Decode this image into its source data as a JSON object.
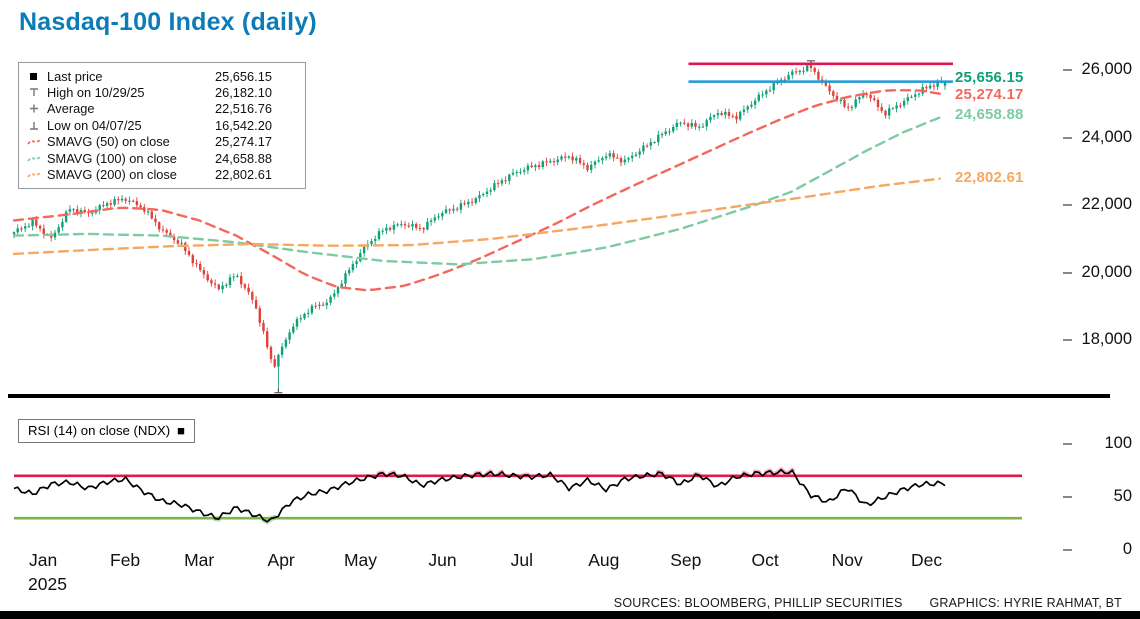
{
  "title": "Nasdaq-100 Index (daily)",
  "colors": {
    "title": "#0b7cb8",
    "up": "#0ea077",
    "down": "#e2403a",
    "sma50": "#f2685f",
    "sma100": "#7ecba2",
    "sma200": "#f7a75f",
    "high_line": "#e1184e",
    "last_line": "#1b9bd7",
    "rsi_line": "#000000",
    "rsi_over": "#e1184e",
    "rsi_under": "#7cb54b",
    "rsi_over_excess": "#f4a7bc",
    "rsi_under_excess": "#a9d49e",
    "axis_text": "#111111"
  },
  "legend": {
    "rows": [
      {
        "marker": "square",
        "label": "Last price",
        "value": "25,656.15"
      },
      {
        "marker": "high-tick",
        "label": "High on 10/29/25",
        "value": "26,182.10"
      },
      {
        "marker": "cross",
        "label": "Average",
        "value": "22,516.76"
      },
      {
        "marker": "low-tick",
        "label": "Low on 04/07/25",
        "value": "16,542.20"
      },
      {
        "marker": "dash-sma50",
        "label": "SMAVG (50) on close",
        "value": "25,274.17"
      },
      {
        "marker": "dash-sma100",
        "label": "SMAVG (100) on close",
        "value": "24,658.88"
      },
      {
        "marker": "dash-sma200",
        "label": "SMAVG (200) on close",
        "value": "22,802.61"
      }
    ]
  },
  "price_axis": [
    {
      "text": "26,000",
      "value": 26000
    },
    {
      "text": "24,000",
      "value": 24000
    },
    {
      "text": "22,000",
      "value": 22000
    },
    {
      "text": "20,000",
      "value": 20000
    },
    {
      "text": "18,000",
      "value": 18000
    }
  ],
  "rsi_axis": [
    {
      "text": "100",
      "value": 100
    },
    {
      "text": "50",
      "value": 50
    },
    {
      "text": "0",
      "value": 0
    }
  ],
  "price_callouts": [
    {
      "text": "25,656.15",
      "value": 25656.15,
      "color_key": "up"
    },
    {
      "text": "25,274.17",
      "value": 25274.17,
      "color_key": "sma50"
    },
    {
      "text": "24,658.88",
      "value": 24658.88,
      "color_key": "sma100"
    },
    {
      "text": "22,802.61",
      "value": 22802.61,
      "color_key": "sma200"
    }
  ],
  "rsi": {
    "label": "RSI (14) on close (NDX)",
    "marker": "■"
  },
  "footer": {
    "sources": "SOURCES: BLOOMBERG, PHILLIP SECURITIES",
    "graphics": "GRAPHICS: HYRIE RAHMAT, BT"
  },
  "chart_data": {
    "type": "candlestick",
    "title": "Nasdaq-100 Index (daily)",
    "year": "2025",
    "months": [
      "Jan",
      "Feb",
      "Mar",
      "Apr",
      "May",
      "Jun",
      "Jul",
      "Aug",
      "Sep",
      "Oct",
      "Nov",
      "Dec"
    ],
    "x_unit": "day_of_year_2025",
    "x_range": [
      0,
      352
    ],
    "ylim_price": [
      16300,
      26800
    ],
    "ylim_rsi": [
      0,
      100
    ],
    "last_price": 25656.15,
    "high": {
      "date": "10/29/25",
      "value": 26182.1
    },
    "low": {
      "date": "04/07/25",
      "value": 16542.2
    },
    "average": 22516.76,
    "weekly_close": [
      21200,
      21500,
      21000,
      21900,
      21750,
      22050,
      22200,
      21900,
      21250,
      20850,
      20100,
      19500,
      19950,
      19100,
      17200,
      18400,
      18950,
      19150,
      20000,
      20800,
      21300,
      21450,
      21300,
      21750,
      21950,
      22200,
      22600,
      22950,
      23150,
      23300,
      23450,
      23100,
      23500,
      23300,
      23700,
      24100,
      24450,
      24300,
      24750,
      24600,
      25100,
      25550,
      25900,
      26100,
      25400,
      24850,
      25350,
      24700,
      25050,
      25400,
      25656.15
    ],
    "sma50": [
      [
        0,
        21550
      ],
      [
        20,
        21720
      ],
      [
        40,
        21930
      ],
      [
        55,
        21870
      ],
      [
        70,
        21550
      ],
      [
        84,
        21100
      ],
      [
        98,
        20500
      ],
      [
        110,
        19950
      ],
      [
        122,
        19580
      ],
      [
        134,
        19480
      ],
      [
        148,
        19620
      ],
      [
        162,
        19980
      ],
      [
        176,
        20420
      ],
      [
        190,
        20920
      ],
      [
        204,
        21420
      ],
      [
        218,
        21980
      ],
      [
        232,
        22500
      ],
      [
        246,
        23000
      ],
      [
        260,
        23500
      ],
      [
        274,
        24000
      ],
      [
        288,
        24480
      ],
      [
        302,
        24920
      ],
      [
        316,
        25220
      ],
      [
        330,
        25400
      ],
      [
        342,
        25400
      ],
      [
        352,
        25274.17
      ]
    ],
    "sma100": [
      [
        0,
        21100
      ],
      [
        28,
        21150
      ],
      [
        56,
        21100
      ],
      [
        84,
        20900
      ],
      [
        112,
        20600
      ],
      [
        140,
        20350
      ],
      [
        168,
        20250
      ],
      [
        196,
        20400
      ],
      [
        224,
        20750
      ],
      [
        252,
        21300
      ],
      [
        280,
        22000
      ],
      [
        294,
        22400
      ],
      [
        308,
        23000
      ],
      [
        322,
        23600
      ],
      [
        336,
        24150
      ],
      [
        352,
        24658.88
      ]
    ],
    "sma200": [
      [
        0,
        20560
      ],
      [
        30,
        20680
      ],
      [
        60,
        20790
      ],
      [
        90,
        20850
      ],
      [
        120,
        20800
      ],
      [
        150,
        20820
      ],
      [
        180,
        21000
      ],
      [
        210,
        21280
      ],
      [
        240,
        21600
      ],
      [
        270,
        21930
      ],
      [
        300,
        22250
      ],
      [
        326,
        22560
      ],
      [
        352,
        22802.61
      ]
    ],
    "rsi14": [
      [
        0,
        58
      ],
      [
        7,
        53
      ],
      [
        14,
        62
      ],
      [
        21,
        64
      ],
      [
        28,
        58
      ],
      [
        35,
        64
      ],
      [
        42,
        67
      ],
      [
        49,
        55
      ],
      [
        56,
        46
      ],
      [
        63,
        43
      ],
      [
        70,
        36
      ],
      [
        77,
        30
      ],
      [
        84,
        40
      ],
      [
        91,
        33
      ],
      [
        97,
        27
      ],
      [
        105,
        46
      ],
      [
        112,
        53
      ],
      [
        119,
        56
      ],
      [
        126,
        63
      ],
      [
        133,
        68
      ],
      [
        140,
        72
      ],
      [
        147,
        70
      ],
      [
        154,
        61
      ],
      [
        161,
        66
      ],
      [
        168,
        69
      ],
      [
        175,
        71
      ],
      [
        182,
        72
      ],
      [
        189,
        70
      ],
      [
        196,
        69
      ],
      [
        203,
        71
      ],
      [
        210,
        58
      ],
      [
        217,
        66
      ],
      [
        224,
        57
      ],
      [
        231,
        67
      ],
      [
        238,
        70
      ],
      [
        245,
        72
      ],
      [
        252,
        62
      ],
      [
        259,
        71
      ],
      [
        266,
        60
      ],
      [
        273,
        69
      ],
      [
        280,
        72
      ],
      [
        287,
        73
      ],
      [
        294,
        74
      ],
      [
        301,
        52
      ],
      [
        308,
        45
      ],
      [
        315,
        59
      ],
      [
        322,
        42
      ],
      [
        329,
        50
      ],
      [
        336,
        57
      ],
      [
        343,
        62
      ],
      [
        352,
        63
      ]
    ],
    "rsi_bands": {
      "overbought": 70,
      "oversold": 30
    }
  }
}
